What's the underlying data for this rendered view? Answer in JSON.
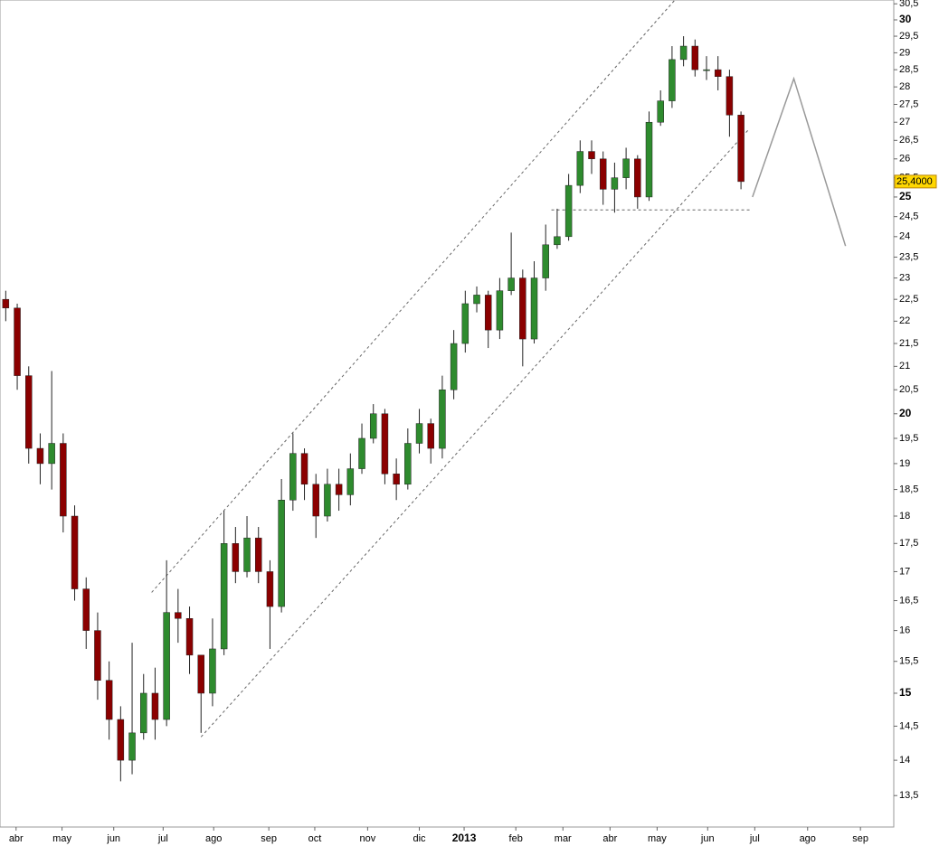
{
  "chart_data": {
    "type": "candlestick",
    "log_scale": true,
    "bull_color": "#2e8b2e",
    "bear_color": "#8b0000",
    "x": [
      0.5,
      1.5,
      2.5,
      3.5,
      4.5,
      5.5,
      6.5,
      7.5,
      8.5,
      9.5,
      10.5,
      11.5,
      12.5,
      13.5,
      14.5,
      15.5,
      16.5,
      17.5,
      18.5,
      19.5,
      20.5,
      21.5,
      22.5,
      23.5,
      24.5,
      25.5,
      26.5,
      27.5,
      28.5,
      29.5,
      30.5,
      31.5,
      32.5,
      33.5,
      34.5,
      35.5,
      36.5,
      37.5,
      38.5,
      39.5,
      40.5,
      41.5,
      42.5,
      43.5,
      44.5,
      45.5,
      46.5,
      47.5,
      48.5,
      49.5,
      50.5,
      51.5,
      52.5,
      53.5,
      54.5,
      55.5,
      56.5,
      57.5,
      58.5,
      59.5,
      60.5,
      61.5,
      62.5,
      63.5,
      64.5
    ],
    "open": [
      22.5,
      22.3,
      20.8,
      19.3,
      19.0,
      19.4,
      18.0,
      16.7,
      16.0,
      15.2,
      14.6,
      14.0,
      14.4,
      15.0,
      14.6,
      16.3,
      16.2,
      15.6,
      15.0,
      15.7,
      17.5,
      17.0,
      17.6,
      17.0,
      16.4,
      18.3,
      19.2,
      18.6,
      18.0,
      18.6,
      18.4,
      18.9,
      19.5,
      20.0,
      18.8,
      18.6,
      19.4,
      19.8,
      19.3,
      20.5,
      21.5,
      22.4,
      22.6,
      21.8,
      22.7,
      23.0,
      21.6,
      23.0,
      23.8,
      24.0,
      25.3,
      26.2,
      26.0,
      25.2,
      25.5,
      26.0,
      25.0,
      27.0,
      27.6,
      28.8,
      29.2,
      28.5,
      28.5,
      28.3,
      27.2
    ],
    "high": [
      22.7,
      22.4,
      21.0,
      19.6,
      20.9,
      19.6,
      18.2,
      16.9,
      16.3,
      15.5,
      14.8,
      15.8,
      15.3,
      15.4,
      17.2,
      16.7,
      16.4,
      15.6,
      16.2,
      18.1,
      17.8,
      18.0,
      17.8,
      17.2,
      18.7,
      19.6,
      19.3,
      18.8,
      18.9,
      18.9,
      19.2,
      19.8,
      20.2,
      20.1,
      19.1,
      19.7,
      20.1,
      19.9,
      20.8,
      21.8,
      22.7,
      22.8,
      22.7,
      23.0,
      24.1,
      23.2,
      23.4,
      24.3,
      24.7,
      25.6,
      26.5,
      26.5,
      26.2,
      25.9,
      26.3,
      26.1,
      27.3,
      27.9,
      29.2,
      29.5,
      29.4,
      28.9,
      28.9,
      28.5,
      27.3
    ],
    "low": [
      22.0,
      20.5,
      19.0,
      18.6,
      18.5,
      17.7,
      16.5,
      15.7,
      14.9,
      14.3,
      13.7,
      13.8,
      14.3,
      14.3,
      14.5,
      15.8,
      15.3,
      14.4,
      14.8,
      15.6,
      16.8,
      16.9,
      16.8,
      15.7,
      16.3,
      18.1,
      18.3,
      17.6,
      17.9,
      18.1,
      18.2,
      18.8,
      19.4,
      18.6,
      18.3,
      18.5,
      19.2,
      19.0,
      19.1,
      20.3,
      21.3,
      22.2,
      21.4,
      21.6,
      22.6,
      21.0,
      21.5,
      22.7,
      23.7,
      23.9,
      25.1,
      25.6,
      24.8,
      24.6,
      25.2,
      24.7,
      24.9,
      26.9,
      27.4,
      28.6,
      28.3,
      28.2,
      27.9,
      26.6,
      25.2
    ],
    "close": [
      22.3,
      20.8,
      19.3,
      19.0,
      19.4,
      18.0,
      16.7,
      16.0,
      15.2,
      14.6,
      14.0,
      14.4,
      15.0,
      14.6,
      16.3,
      16.2,
      15.6,
      15.0,
      15.7,
      17.5,
      17.0,
      17.6,
      17.0,
      16.4,
      18.3,
      19.2,
      18.6,
      18.0,
      18.6,
      18.4,
      18.9,
      19.5,
      20.0,
      18.8,
      18.6,
      19.4,
      19.8,
      19.3,
      20.5,
      21.5,
      22.4,
      22.6,
      21.8,
      22.7,
      23.0,
      21.6,
      23.0,
      23.8,
      24.0,
      25.3,
      26.2,
      26.0,
      25.2,
      25.5,
      26.0,
      25.0,
      27.0,
      27.6,
      28.8,
      29.2,
      28.5,
      28.5,
      28.3,
      27.2,
      25.4
    ],
    "last_price": {
      "value": 25.4,
      "label": "25,4000"
    },
    "trend_lines": [
      {
        "x": [
          13.2,
          58.7
        ],
        "y": [
          16.64,
          30.6
        ],
        "style": "dashed",
        "color": "#666666"
      },
      {
        "x": [
          17.5,
          65.2
        ],
        "y": [
          14.34,
          26.81
        ],
        "style": "dashed",
        "color": "#666666"
      },
      {
        "x": [
          48.0,
          65.4
        ],
        "y": [
          24.67,
          24.67
        ],
        "style": "dashed",
        "color": "#666666"
      },
      {
        "x": [
          65.5,
          69.1,
          73.6
        ],
        "y": [
          25.0,
          28.24,
          23.77
        ],
        "style": "solid",
        "color": "#999999"
      }
    ],
    "xlim": [
      0,
      77.8
    ],
    "xticks": [
      {
        "value": 1.4,
        "label": "abr"
      },
      {
        "value": 5.4,
        "label": "may"
      },
      {
        "value": 9.9,
        "label": "jun"
      },
      {
        "value": 14.2,
        "label": "jul"
      },
      {
        "value": 18.6,
        "label": "ago"
      },
      {
        "value": 23.4,
        "label": "sep"
      },
      {
        "value": 27.4,
        "label": "oct"
      },
      {
        "value": 32.0,
        "label": "nov"
      },
      {
        "value": 36.5,
        "label": "dic"
      },
      {
        "value": 40.4,
        "label": "2013"
      },
      {
        "value": 44.9,
        "label": "feb"
      },
      {
        "value": 49.0,
        "label": "mar"
      },
      {
        "value": 53.1,
        "label": "abr"
      },
      {
        "value": 57.2,
        "label": "may"
      },
      {
        "value": 61.6,
        "label": "jun"
      },
      {
        "value": 65.7,
        "label": "jul"
      },
      {
        "value": 70.3,
        "label": "ago"
      },
      {
        "value": 74.9,
        "label": "sep"
      }
    ],
    "ylim": [
      13.07,
      30.62
    ],
    "yticks": [
      {
        "value": 13.5,
        "label": "13,5"
      },
      14,
      {
        "value": 14.5,
        "label": "14,5"
      },
      15,
      {
        "value": 15.5,
        "label": "15,5"
      },
      16,
      {
        "value": 16.5,
        "label": "16,5"
      },
      17,
      {
        "value": 17.5,
        "label": "17,5"
      },
      18,
      {
        "value": 18.5,
        "label": "18,5"
      },
      19,
      {
        "value": 19.5,
        "label": "19,5"
      },
      20,
      {
        "value": 20.5,
        "label": "20,5"
      },
      21,
      {
        "value": 21.5,
        "label": "21,5"
      },
      22,
      {
        "value": 22.5,
        "label": "22,5"
      },
      23,
      {
        "value": 23.5,
        "label": "23,5"
      },
      24,
      {
        "value": 24.5,
        "label": "24,5"
      },
      25,
      {
        "value": 25.5,
        "label": "25,5"
      },
      26,
      {
        "value": 26.5,
        "label": "26,5"
      },
      27,
      {
        "value": 27.5,
        "label": "27,5"
      },
      28,
      {
        "value": 28.5,
        "label": "28,5"
      },
      29,
      {
        "value": 29.5,
        "label": "29,5"
      },
      30,
      {
        "value": 30.5,
        "label": "30,5"
      }
    ]
  }
}
